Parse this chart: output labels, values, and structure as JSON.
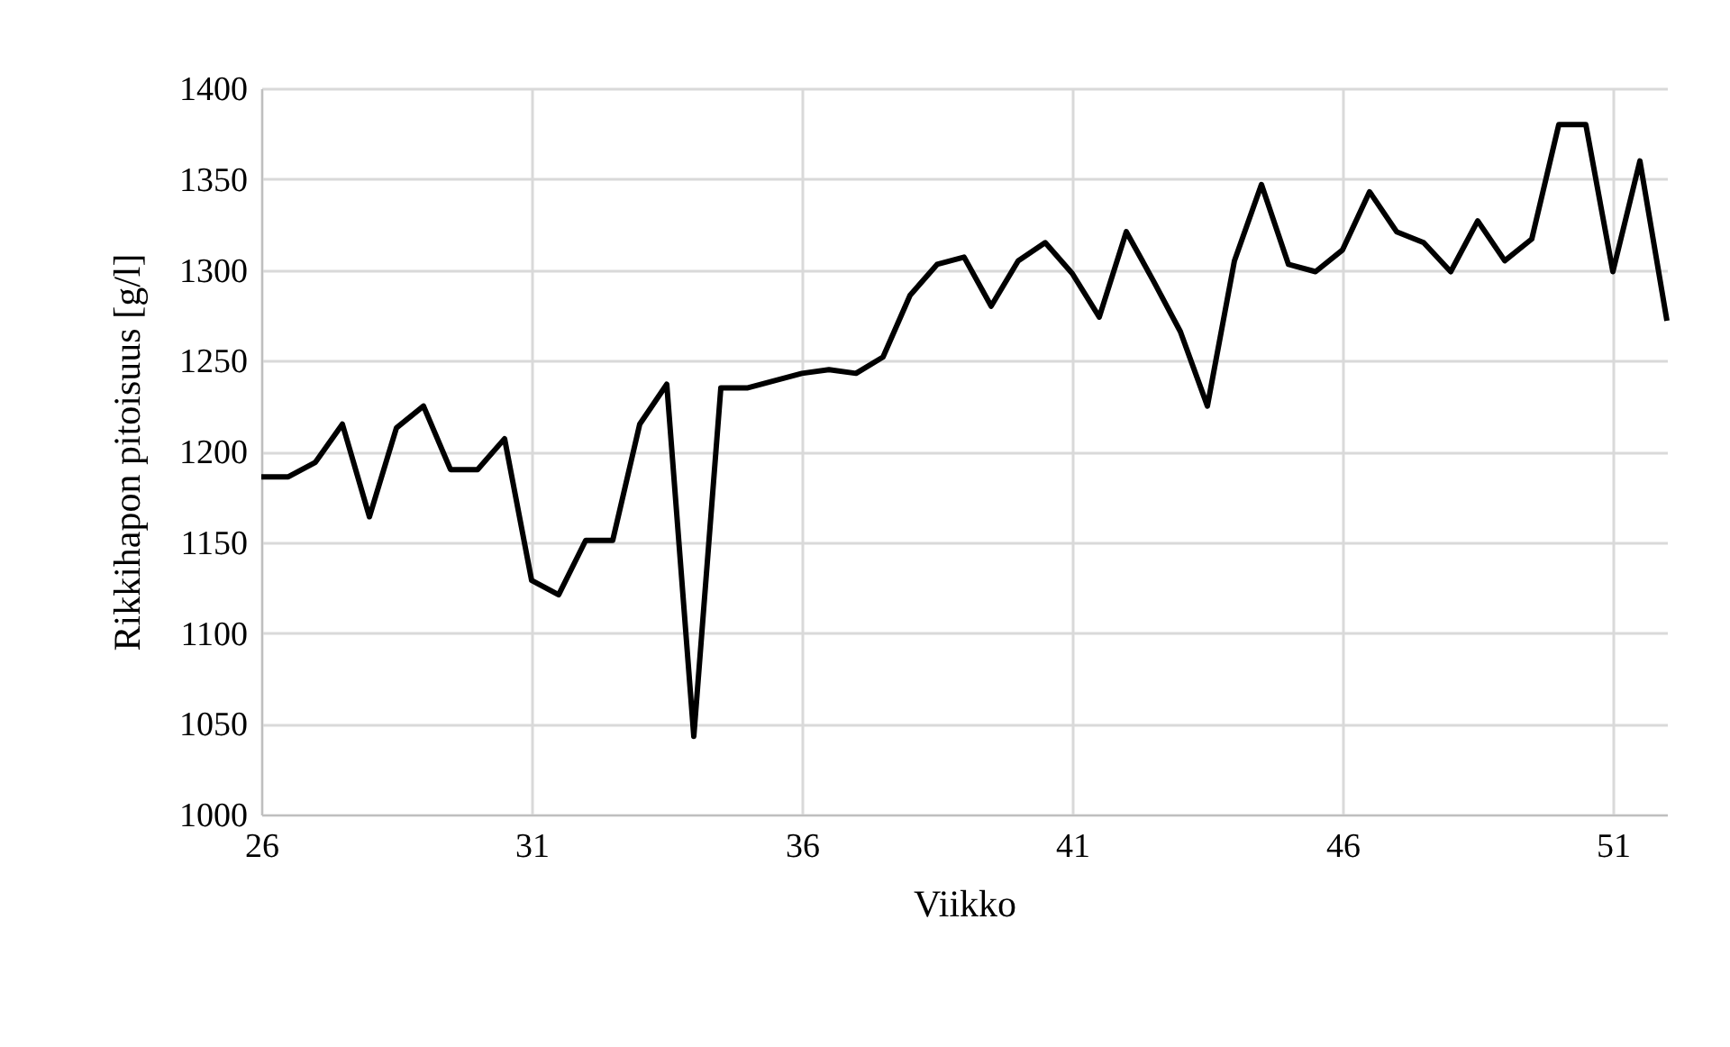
{
  "chart_data": {
    "type": "line",
    "xlabel": "Viikko",
    "ylabel": "Rikkihapon pitoisuus [g/l]",
    "x": [
      26,
      26.5,
      27,
      27.5,
      28,
      28.5,
      29,
      29.5,
      30,
      30.5,
      31,
      31.5,
      32,
      32.5,
      33,
      33.5,
      34,
      34.5,
      35,
      35.5,
      36,
      36.5,
      37,
      37.5,
      38,
      38.5,
      39,
      39.5,
      40,
      40.5,
      41,
      41.5,
      42,
      42.5,
      43,
      43.5,
      44,
      44.5,
      45,
      45.5,
      46,
      46.5,
      47,
      47.5,
      48,
      48.5,
      49,
      49.5,
      50,
      50.5,
      51,
      51.5,
      52
    ],
    "series": [
      {
        "color": "#000000",
        "values": [
          1186,
          1186,
          1194,
          1215,
          1164,
          1213,
          1225,
          1190,
          1190,
          1207,
          1129,
          1121,
          1151,
          1151,
          1215,
          1237,
          1043,
          1235,
          1235,
          1239,
          1243,
          1245,
          1243,
          1252,
          1286,
          1303,
          1307,
          1280,
          1305,
          1315,
          1298,
          1274,
          1321,
          1294,
          1266,
          1225,
          1305,
          1347,
          1303,
          1299,
          1311,
          1343,
          1321,
          1315,
          1299,
          1327,
          1305,
          1317,
          1380,
          1380,
          1299,
          1360,
          1272
        ]
      }
    ],
    "xlim": [
      26,
      52
    ],
    "xticks": [
      26,
      31,
      36,
      41,
      46,
      51
    ],
    "ylim": [
      1000,
      1400
    ],
    "yticks": [
      1000,
      1050,
      1100,
      1150,
      1200,
      1250,
      1300,
      1350,
      1400
    ],
    "grid": true,
    "marker": "none",
    "line_style": "solid"
  }
}
